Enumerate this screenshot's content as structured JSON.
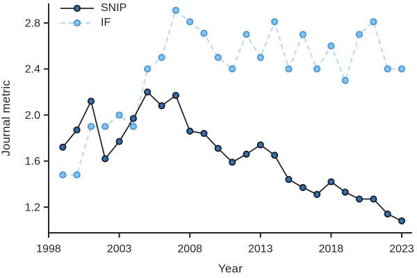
{
  "figure": {
    "background": "#ffffff",
    "axis_color": "#2b2522",
    "text_color": "#2b2522"
  },
  "chart_data": {
    "type": "line",
    "title": "",
    "xlabel": "Year",
    "ylabel": "Journal metric",
    "x": [
      1999,
      2000,
      2001,
      2002,
      2003,
      2004,
      2005,
      2006,
      2007,
      2008,
      2009,
      2010,
      2011,
      2012,
      2013,
      2014,
      2015,
      2016,
      2017,
      2018,
      2019,
      2020,
      2021,
      2022,
      2023
    ],
    "series": [
      {
        "name": "IF",
        "line_style": "dashed",
        "line_color": "#a3d2f2",
        "marker_fill": "#85c4ef",
        "marker_edge": "#3e92d6",
        "values": [
          1.48,
          1.48,
          1.9,
          1.9,
          2.0,
          1.9,
          2.4,
          2.5,
          2.91,
          2.81,
          2.71,
          2.5,
          2.4,
          2.7,
          2.5,
          2.81,
          2.4,
          2.7,
          2.4,
          2.6,
          2.3,
          2.7,
          2.81,
          2.4,
          2.4
        ]
      },
      {
        "name": "SNIP",
        "line_style": "solid",
        "line_color": "#2b2522",
        "marker_fill": "#2f6fae",
        "marker_edge": "#16161e",
        "values": [
          1.72,
          1.87,
          2.12,
          1.62,
          1.77,
          1.97,
          2.2,
          2.08,
          2.17,
          1.86,
          1.84,
          1.71,
          1.59,
          1.66,
          1.74,
          1.65,
          1.44,
          1.37,
          1.31,
          1.42,
          1.33,
          1.27,
          1.27,
          1.14,
          1.08
        ]
      }
    ],
    "legend_order": [
      "SNIP",
      "IF"
    ],
    "legend_position": "top-left",
    "xticks": [
      1998,
      2003,
      2008,
      2013,
      2018,
      2023
    ],
    "yticks": [
      "1.2",
      "1.6",
      "2.0",
      "2.4",
      "2.8"
    ],
    "xlim": [
      1998,
      2023.7
    ],
    "ylim": [
      0.97,
      2.98
    ],
    "grid": false
  }
}
